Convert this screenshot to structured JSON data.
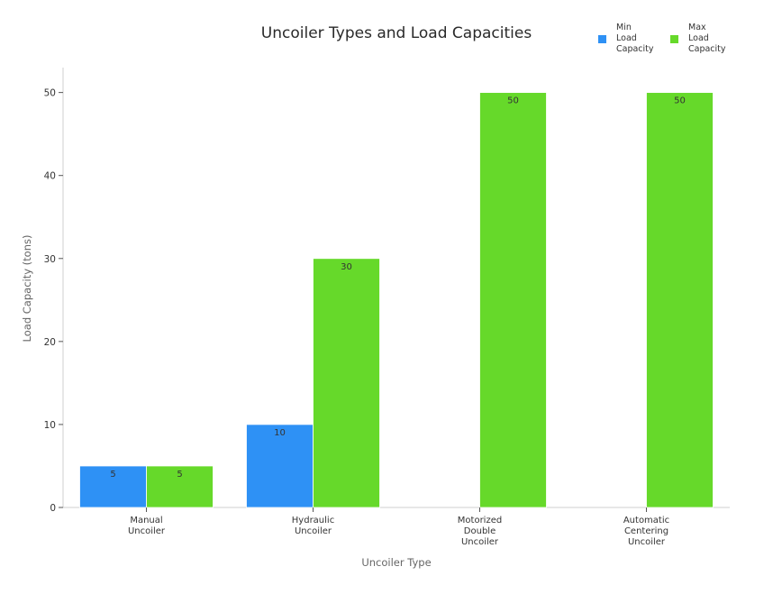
{
  "chart_data": {
    "type": "bar",
    "title": "Uncoiler Types and Load Capacities",
    "xlabel": "Uncoiler Type",
    "ylabel": "Load Capacity (tons)",
    "categories": [
      [
        "Manual",
        "Uncoiler"
      ],
      [
        "Hydraulic",
        "Uncoiler"
      ],
      [
        "Motorized",
        "Double",
        "Uncoiler"
      ],
      [
        "Automatic",
        "Centering",
        "Uncoiler"
      ]
    ],
    "series": [
      {
        "name": "Min Load Capacity",
        "name_lines": [
          "Min",
          "Load",
          "Capacity"
        ],
        "color": "#2e91f5",
        "values": [
          5,
          10,
          0,
          0
        ],
        "labels": [
          "5",
          "10",
          "",
          ""
        ]
      },
      {
        "name": "Max Load Capacity",
        "name_lines": [
          "Max",
          "Load",
          "Capacity"
        ],
        "color": "#66d92a",
        "values": [
          5,
          30,
          50,
          50
        ],
        "labels": [
          "5",
          "30",
          "50",
          "50"
        ]
      }
    ],
    "ylim": [
      0,
      53
    ],
    "yticks": [
      0,
      10,
      20,
      30,
      40,
      50
    ],
    "grid": false,
    "legend_position": "top-right"
  }
}
